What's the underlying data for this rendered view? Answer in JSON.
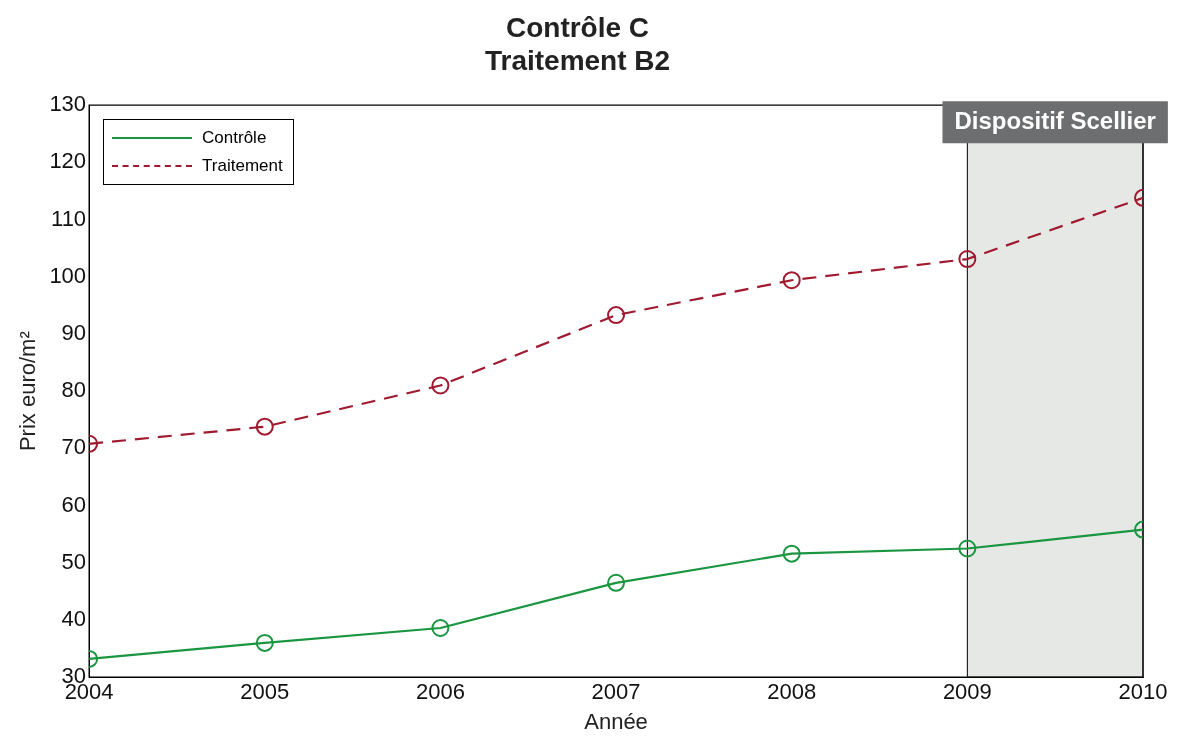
{
  "chart_data": {
    "type": "line",
    "title": "Contrôle C\nTraitement B2",
    "xlabel": "Année",
    "ylabel": "Prix euro/m²",
    "x": [
      2004,
      2005,
      2006,
      2007,
      2008,
      2009,
      2010
    ],
    "series": [
      {
        "name": "Contrôle",
        "color": "#1a9641",
        "line_style": "solid",
        "values": [
          33.2,
          36.0,
          38.6,
          46.5,
          51.6,
          52.5,
          55.8
        ]
      },
      {
        "name": "Traitement",
        "color": "#a0192e",
        "line_style": "dashed",
        "values": [
          70.8,
          73.8,
          81.0,
          93.3,
          99.4,
          103.1,
          113.8
        ]
      }
    ],
    "xlim": [
      2004,
      2010
    ],
    "xticks": [
      2004,
      2005,
      2006,
      2007,
      2008,
      2009,
      2010
    ],
    "ylim": [
      30,
      130
    ],
    "yticks": [
      30,
      40,
      50,
      60,
      70,
      80,
      90,
      100,
      110,
      120,
      130
    ],
    "bands": [
      {
        "axis": "x",
        "from": 2009,
        "to": 2010,
        "label": "Dispositif Scellier",
        "color": "#e6e8e6"
      }
    ],
    "marker": "circle",
    "grid": false,
    "legend": "top left"
  }
}
